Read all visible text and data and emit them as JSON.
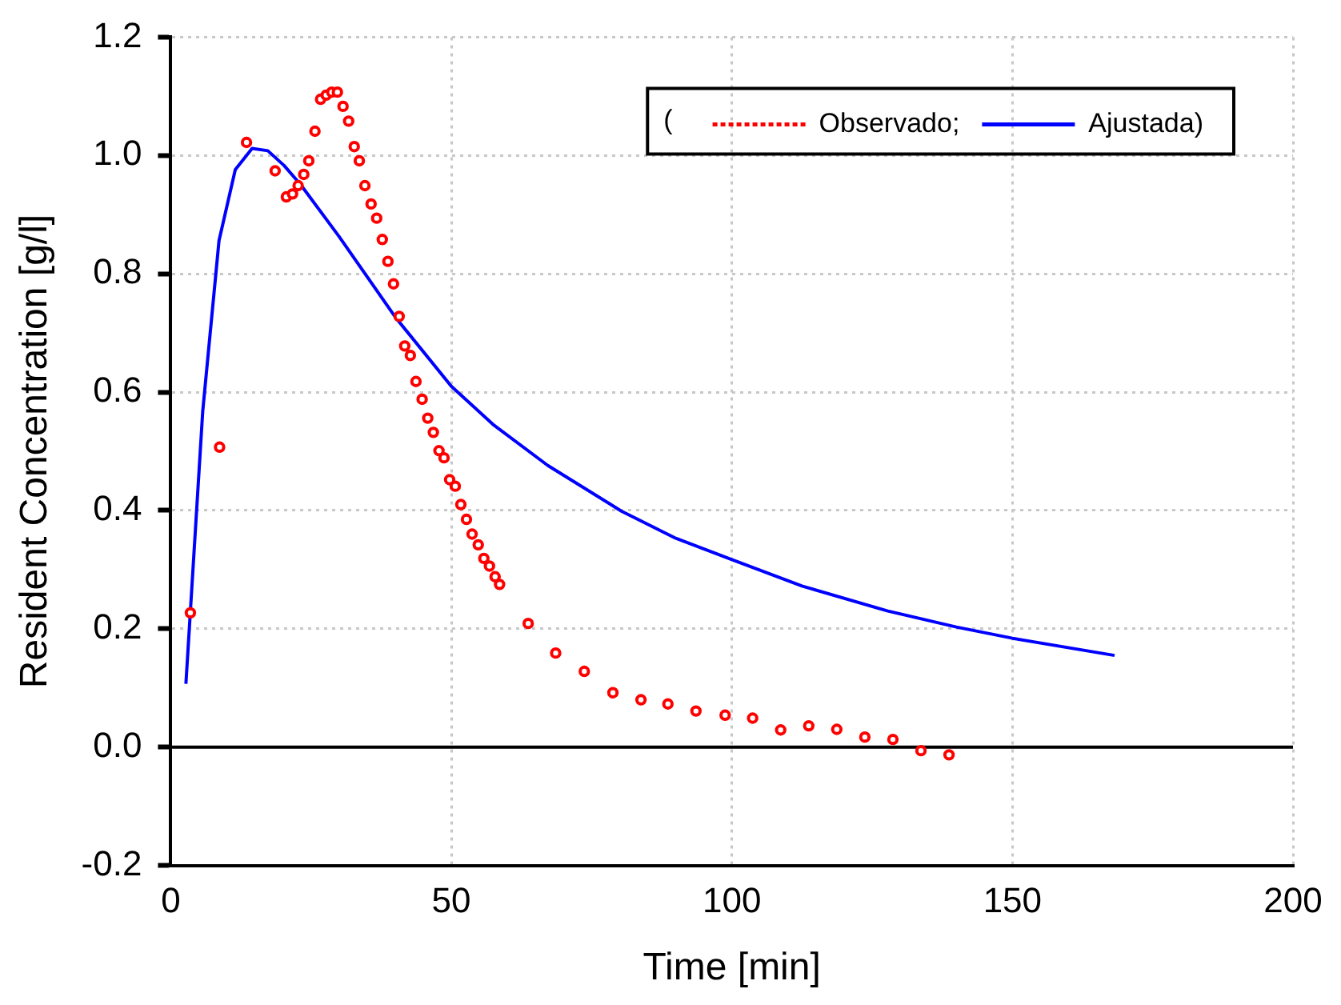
{
  "chart_data": {
    "type": "scatter",
    "xlabel": "Time [min]",
    "ylabel": "Resident Concentration [g/l]",
    "xlim": [
      0,
      200
    ],
    "xticks": [
      0,
      50,
      100,
      150,
      200
    ],
    "ylim": [
      -0.2,
      1.2
    ],
    "yticks": [
      -0.2,
      {
        "value": 0,
        "label": "0.0"
      },
      0.2,
      0.4,
      0.6,
      0.8,
      {
        "value": 1,
        "label": "1.0"
      },
      1.2
    ],
    "grid": true,
    "legend": "top right",
    "legend_title": "(",
    "series": [
      {
        "name": "Observado;",
        "marker": "circle",
        "color": "#ff0000",
        "x": [
          3.5,
          8.7,
          13.5,
          18.6,
          20.6,
          21.7,
          22.7,
          23.7,
          24.6,
          25.7,
          26.7,
          27.7,
          28.7,
          29.7,
          30.7,
          31.7,
          32.7,
          33.6,
          34.6,
          35.7,
          36.7,
          37.7,
          38.7,
          39.7,
          40.7,
          41.7,
          42.7,
          43.7,
          44.8,
          45.8,
          46.8,
          47.8,
          48.7,
          49.7,
          50.7,
          51.7,
          52.7,
          53.7,
          54.8,
          55.8,
          56.8,
          57.8,
          58.6,
          63.7,
          68.6,
          73.7,
          78.8,
          83.8,
          88.6,
          93.6,
          98.8,
          103.7,
          108.7,
          113.7,
          118.7,
          123.7,
          128.7,
          133.7,
          138.7
        ],
        "values": [
          0.227,
          0.507,
          1.022,
          0.974,
          0.93,
          0.935,
          0.949,
          0.968,
          0.991,
          1.041,
          1.095,
          1.102,
          1.107,
          1.107,
          1.083,
          1.058,
          1.015,
          0.991,
          0.949,
          0.918,
          0.894,
          0.858,
          0.821,
          0.783,
          0.728,
          0.678,
          0.662,
          0.618,
          0.588,
          0.556,
          0.532,
          0.501,
          0.489,
          0.452,
          0.441,
          0.41,
          0.385,
          0.36,
          0.342,
          0.319,
          0.306,
          0.288,
          0.275,
          0.209,
          0.159,
          0.128,
          0.092,
          0.08,
          0.073,
          0.061,
          0.054,
          0.049,
          0.029,
          0.036,
          0.03,
          0.017,
          0.013,
          -0.006,
          -0.013
        ]
      },
      {
        "name": "Ajustada)",
        "type": "line",
        "marker": "none",
        "line_style": "solid",
        "color": "#0000ff",
        "x": [
          2.7,
          5.7,
          8.6,
          11.5,
          14.5,
          17.3,
          20.2,
          23.2,
          30,
          40,
          50,
          57.6,
          67.2,
          80.3,
          90,
          100,
          112.6,
          127.8,
          140,
          150,
          168.2
        ],
        "values": [
          0.107,
          0.568,
          0.856,
          0.976,
          1.012,
          1.008,
          0.983,
          0.95,
          0.863,
          0.727,
          0.61,
          0.544,
          0.476,
          0.399,
          0.353,
          0.317,
          0.272,
          0.23,
          0.203,
          0.184,
          0.155
        ]
      }
    ]
  }
}
